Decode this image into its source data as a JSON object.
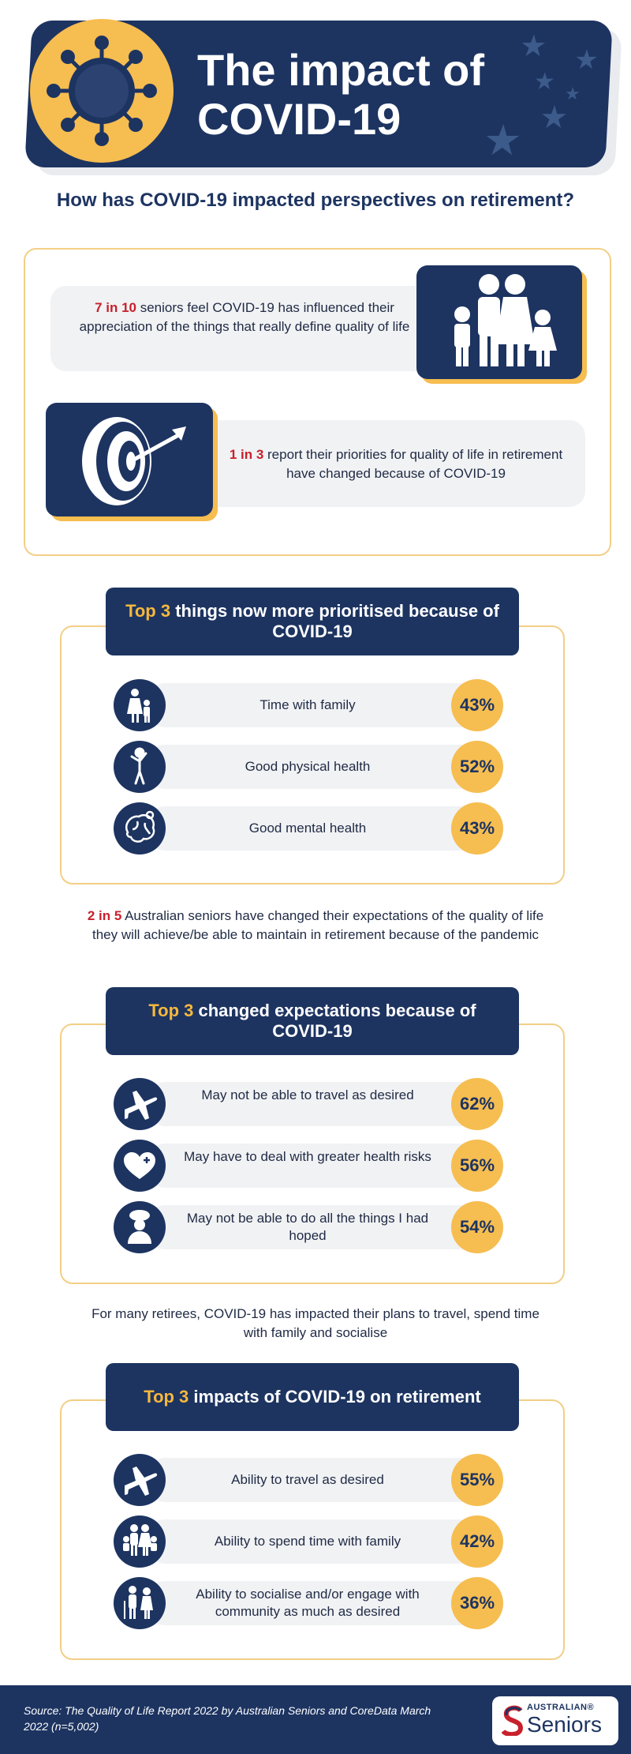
{
  "header": {
    "title": "The impact of COVID-19",
    "question": "How has COVID-19 impacted perspectives on retirement?"
  },
  "stats": [
    {
      "highlight": "7 in 10",
      "text": " seniors feel COVID-19 has influenced their appreciation of the things that really define quality of life"
    },
    {
      "highlight": "1 in 3",
      "text": " report their priorities for quality of life in retirement have changed because of COVID-19"
    }
  ],
  "section1": {
    "highlight": "Top 3",
    "title": " things now more prioritised because of COVID-19",
    "rows": [
      {
        "label": "Time with family",
        "value": "43%",
        "icon": "family-icon"
      },
      {
        "label": "Good physical health",
        "value": "52%",
        "icon": "stretching-person-icon"
      },
      {
        "label": "Good mental health",
        "value": "43%",
        "icon": "brain-icon"
      }
    ]
  },
  "mid1": {
    "highlight": "2 in 5",
    "text": " Australian seniors have changed their expectations of the quality of life they will achieve/be able to maintain in retirement because of the pandemic"
  },
  "section2": {
    "highlight": "Top 3",
    "title": " changed expectations because of COVID-19",
    "rows": [
      {
        "label": "May not be able to travel as desired",
        "value": "62%",
        "icon": "airplane-icon"
      },
      {
        "label": "May have to deal with greater health risks",
        "value": "56%",
        "icon": "heart-plus-icon"
      },
      {
        "label": "May not be able to do all the things I had hoped",
        "value": "54%",
        "icon": "worried-person-icon"
      }
    ]
  },
  "mid2": {
    "text": "For many retirees, COVID-19 has impacted their plans to travel, spend time with family and socialise"
  },
  "section3": {
    "highlight": "Top 3",
    "title": " impacts of COVID-19 on retirement",
    "rows": [
      {
        "label": "Ability to travel as desired",
        "value": "55%",
        "icon": "airplane-icon"
      },
      {
        "label": "Ability to spend time with family",
        "value": "42%",
        "icon": "family-group-icon"
      },
      {
        "label": "Ability to socialise and/or engage with community as much as desired",
        "value": "36%",
        "icon": "elderly-couple-icon"
      }
    ]
  },
  "footer": {
    "source": "Source: The Quality of Life Report 2022 by Australian Seniors and CoreData March 2022 (n=5,002)",
    "logo_small": "AUSTRALIAN®",
    "logo_big": "Seniors"
  },
  "colors": {
    "navy": "#1d3461",
    "gold": "#f6bd50",
    "red": "#c8202c",
    "pill": "#f1f2f4"
  }
}
